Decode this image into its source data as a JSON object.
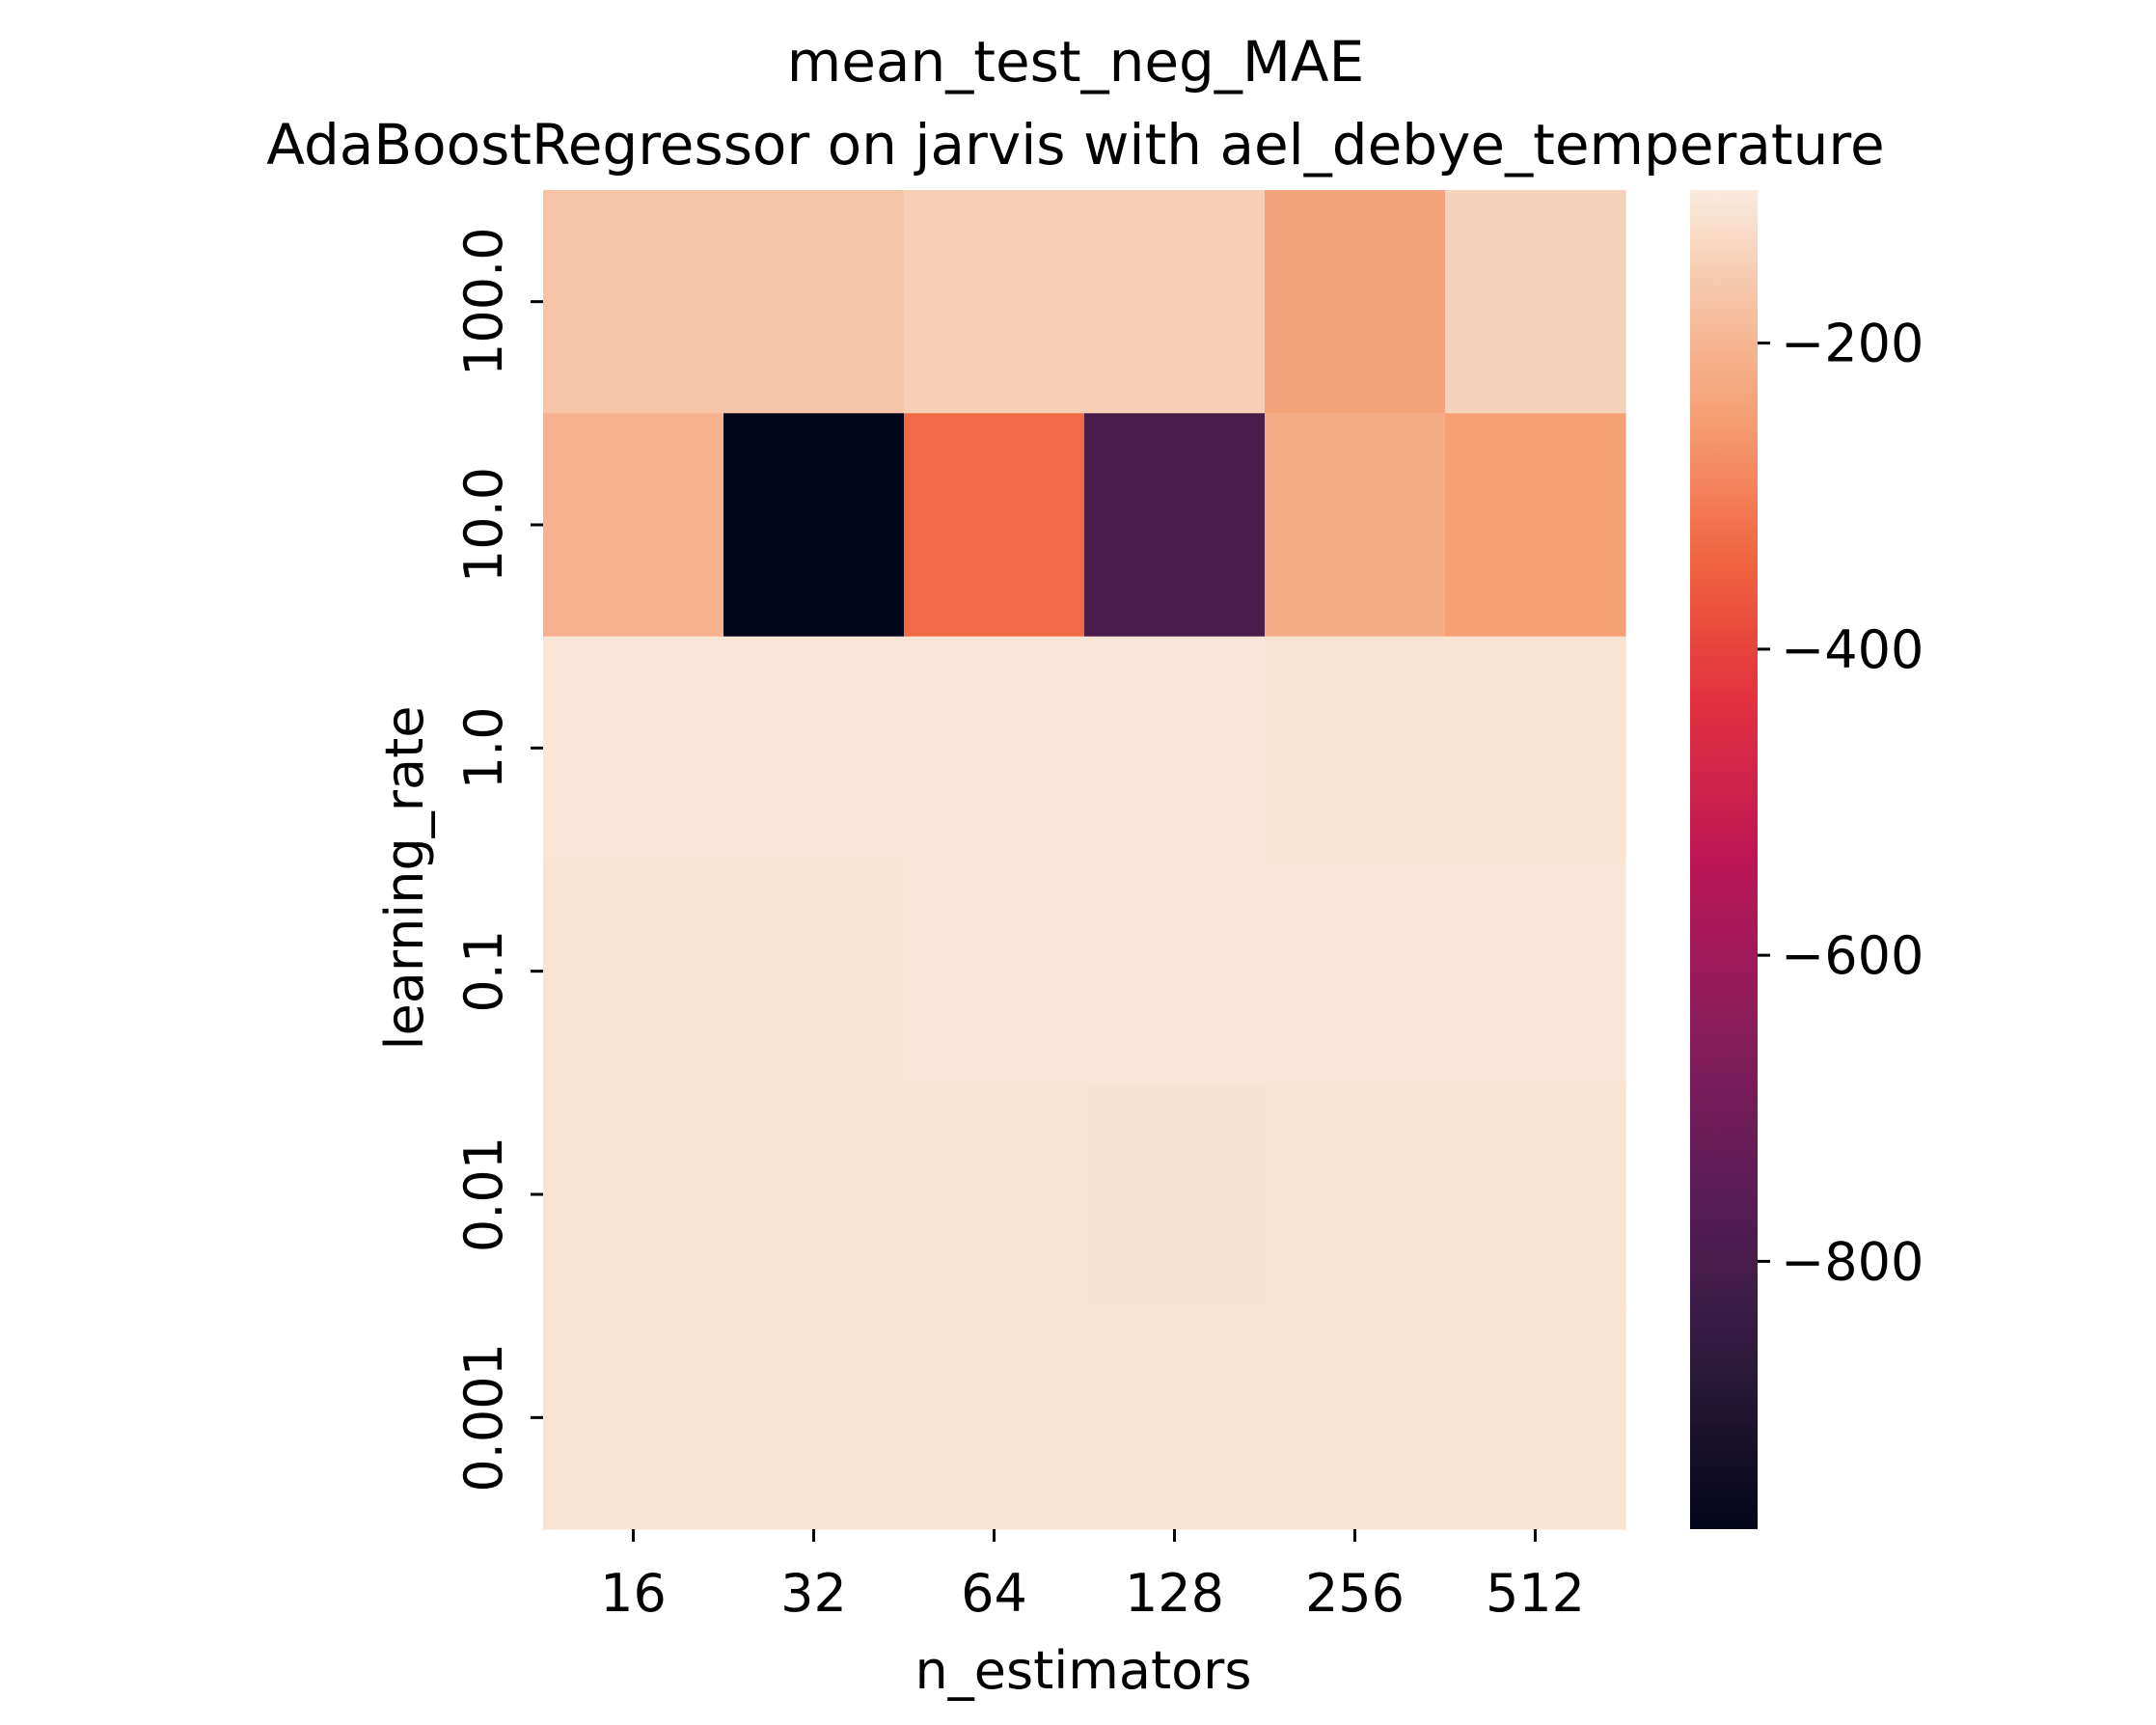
{
  "chart_data": {
    "type": "heatmap",
    "title": "mean_test_neg_MAE",
    "subtitle": "AdaBoostRegressor on jarvis with ael_debye_temperature",
    "xlabel": "n_estimators",
    "ylabel": "learning_rate",
    "x_categories": [
      "16",
      "32",
      "64",
      "128",
      "256",
      "512"
    ],
    "y_categories": [
      "100.0",
      "10.0",
      "1.0",
      "0.1",
      "0.01",
      "0.001"
    ],
    "values": [
      [
        -168,
        -168,
        -150,
        -150,
        -237,
        -145
      ],
      [
        -208,
        -975,
        -332,
        -798,
        -217,
        -247
      ],
      [
        -110,
        -110,
        -110,
        -110,
        -115,
        -115
      ],
      [
        -112,
        -112,
        -110,
        -110,
        -110,
        -110
      ],
      [
        -112,
        -112,
        -112,
        -117,
        -112,
        -112
      ],
      [
        -112,
        -112,
        -112,
        -112,
        -112,
        -112
      ]
    ],
    "colorbar": {
      "range": [
        -975,
        -100
      ],
      "ticks": [
        -200,
        -400,
        -600,
        -800
      ],
      "tick_labels": [
        "−200",
        "−400",
        "−600",
        "−800"
      ],
      "colormap": "rocket"
    },
    "grid": false
  }
}
